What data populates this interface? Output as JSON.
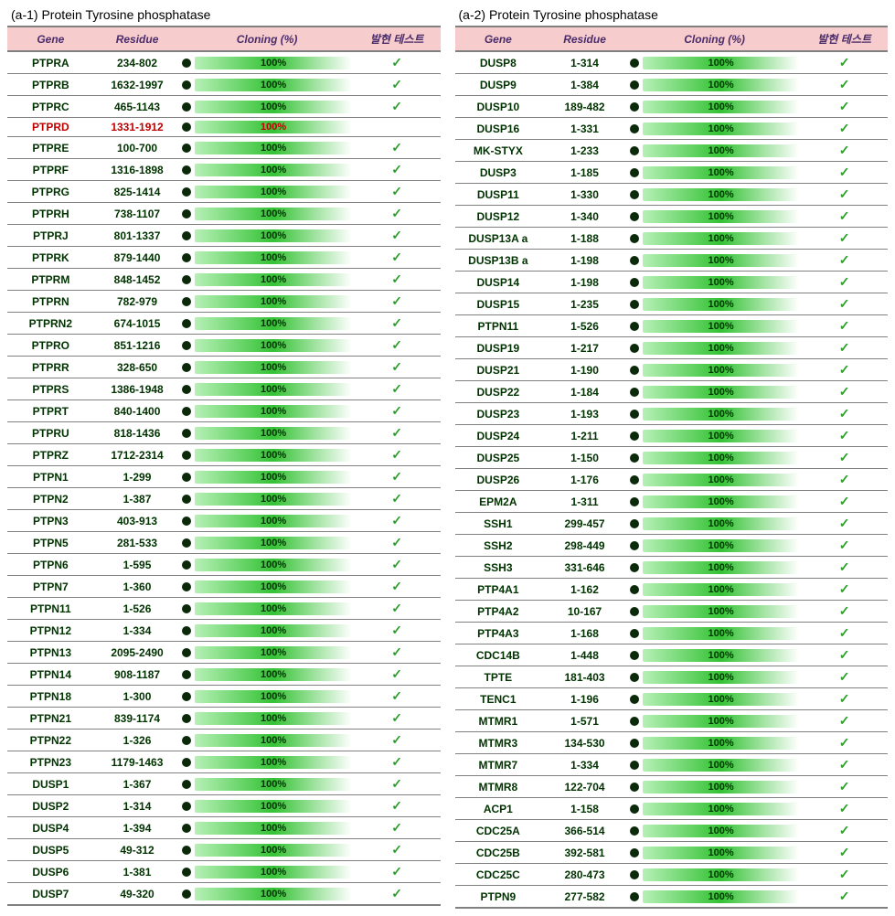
{
  "title_left": "(a-1) Protein Tyrosine phosphatase",
  "title_right": "(a-2) Protein Tyrosine phosphatase",
  "headers": {
    "gene": "Gene",
    "residue": "Residue",
    "cloning": "Cloning (%)",
    "test": "발현 테스트"
  },
  "colors": {
    "header_bg": "#f7cccc",
    "header_text": "#4a2c6b",
    "row_text": "#003300",
    "highlight_text": "#c00000",
    "border": "#808080",
    "dot": "#0a2a0a",
    "bar_gradient_from": "#b6f0b6",
    "bar_gradient_mid": "#34c234",
    "bar_gradient_to": "#ffffff",
    "check": "#2aa02a",
    "background": "#ffffff"
  },
  "font": {
    "family": "Arial",
    "title_size": 14,
    "header_size": 12,
    "cell_size": 12,
    "bar_label_size": 11
  },
  "check_glyph": "✓",
  "left_rows": [
    {
      "gene": "PTPRA",
      "residue": "234-802",
      "cloning": "100%",
      "check": true,
      "highlight": false
    },
    {
      "gene": "PTPRB",
      "residue": "1632-1997",
      "cloning": "100%",
      "check": true,
      "highlight": false
    },
    {
      "gene": "PTPRC",
      "residue": "465-1143",
      "cloning": "100%",
      "check": true,
      "highlight": false
    },
    {
      "gene": "PTPRD",
      "residue": "1331-1912",
      "cloning": "100%",
      "check": false,
      "highlight": true
    },
    {
      "gene": "PTPRE",
      "residue": "100-700",
      "cloning": "100%",
      "check": true,
      "highlight": false
    },
    {
      "gene": "PTPRF",
      "residue": "1316-1898",
      "cloning": "100%",
      "check": true,
      "highlight": false
    },
    {
      "gene": "PTPRG",
      "residue": "825-1414",
      "cloning": "100%",
      "check": true,
      "highlight": false
    },
    {
      "gene": "PTPRH",
      "residue": "738-1107",
      "cloning": "100%",
      "check": true,
      "highlight": false
    },
    {
      "gene": "PTPRJ",
      "residue": "801-1337",
      "cloning": "100%",
      "check": true,
      "highlight": false
    },
    {
      "gene": "PTPRK",
      "residue": "879-1440",
      "cloning": "100%",
      "check": true,
      "highlight": false
    },
    {
      "gene": "PTPRM",
      "residue": "848-1452",
      "cloning": "100%",
      "check": true,
      "highlight": false
    },
    {
      "gene": "PTPRN",
      "residue": "782-979",
      "cloning": "100%",
      "check": true,
      "highlight": false
    },
    {
      "gene": "PTPRN2",
      "residue": "674-1015",
      "cloning": "100%",
      "check": true,
      "highlight": false
    },
    {
      "gene": "PTPRO",
      "residue": "851-1216",
      "cloning": "100%",
      "check": true,
      "highlight": false
    },
    {
      "gene": "PTPRR",
      "residue": "328-650",
      "cloning": "100%",
      "check": true,
      "highlight": false
    },
    {
      "gene": "PTPRS",
      "residue": "1386-1948",
      "cloning": "100%",
      "check": true,
      "highlight": false
    },
    {
      "gene": "PTPRT",
      "residue": "840-1400",
      "cloning": "100%",
      "check": true,
      "highlight": false
    },
    {
      "gene": "PTPRU",
      "residue": "818-1436",
      "cloning": "100%",
      "check": true,
      "highlight": false
    },
    {
      "gene": "PTPRZ",
      "residue": "1712-2314",
      "cloning": "100%",
      "check": true,
      "highlight": false
    },
    {
      "gene": "PTPN1",
      "residue": "1-299",
      "cloning": "100%",
      "check": true,
      "highlight": false
    },
    {
      "gene": "PTPN2",
      "residue": "1-387",
      "cloning": "100%",
      "check": true,
      "highlight": false
    },
    {
      "gene": "PTPN3",
      "residue": "403-913",
      "cloning": "100%",
      "check": true,
      "highlight": false
    },
    {
      "gene": "PTPN5",
      "residue": "281-533",
      "cloning": "100%",
      "check": true,
      "highlight": false
    },
    {
      "gene": "PTPN6",
      "residue": "1-595",
      "cloning": "100%",
      "check": true,
      "highlight": false
    },
    {
      "gene": "PTPN7",
      "residue": "1-360",
      "cloning": "100%",
      "check": true,
      "highlight": false
    },
    {
      "gene": "PTPN11",
      "residue": "1-526",
      "cloning": "100%",
      "check": true,
      "highlight": false
    },
    {
      "gene": "PTPN12",
      "residue": "1-334",
      "cloning": "100%",
      "check": true,
      "highlight": false
    },
    {
      "gene": "PTPN13",
      "residue": "2095-2490",
      "cloning": "100%",
      "check": true,
      "highlight": false
    },
    {
      "gene": "PTPN14",
      "residue": "908-1187",
      "cloning": "100%",
      "check": true,
      "highlight": false
    },
    {
      "gene": "PTPN18",
      "residue": "1-300",
      "cloning": "100%",
      "check": true,
      "highlight": false
    },
    {
      "gene": "PTPN21",
      "residue": "839-1174",
      "cloning": "100%",
      "check": true,
      "highlight": false
    },
    {
      "gene": "PTPN22",
      "residue": "1-326",
      "cloning": "100%",
      "check": true,
      "highlight": false
    },
    {
      "gene": "PTPN23",
      "residue": "1179-1463",
      "cloning": "100%",
      "check": true,
      "highlight": false
    },
    {
      "gene": "DUSP1",
      "residue": "1-367",
      "cloning": "100%",
      "check": true,
      "highlight": false
    },
    {
      "gene": "DUSP2",
      "residue": "1-314",
      "cloning": "100%",
      "check": true,
      "highlight": false
    },
    {
      "gene": "DUSP4",
      "residue": "1-394",
      "cloning": "100%",
      "check": true,
      "highlight": false
    },
    {
      "gene": "DUSP5",
      "residue": "49-312",
      "cloning": "100%",
      "check": true,
      "highlight": false
    },
    {
      "gene": "DUSP6",
      "residue": "1-381",
      "cloning": "100%",
      "check": true,
      "highlight": false
    },
    {
      "gene": "DUSP7",
      "residue": "49-320",
      "cloning": "100%",
      "check": true,
      "highlight": false
    }
  ],
  "right_rows": [
    {
      "gene": "DUSP8",
      "residue": "1-314",
      "cloning": "100%",
      "check": true,
      "highlight": false
    },
    {
      "gene": "DUSP9",
      "residue": "1-384",
      "cloning": "100%",
      "check": true,
      "highlight": false
    },
    {
      "gene": "DUSP10",
      "residue": "189-482",
      "cloning": "100%",
      "check": true,
      "highlight": false
    },
    {
      "gene": "DUSP16",
      "residue": "1-331",
      "cloning": "100%",
      "check": true,
      "highlight": false
    },
    {
      "gene": "MK-STYX",
      "residue": "1-233",
      "cloning": "100%",
      "check": true,
      "highlight": false
    },
    {
      "gene": "DUSP3",
      "residue": "1-185",
      "cloning": "100%",
      "check": true,
      "highlight": false
    },
    {
      "gene": "DUSP11",
      "residue": "1-330",
      "cloning": "100%",
      "check": true,
      "highlight": false
    },
    {
      "gene": "DUSP12",
      "residue": "1-340",
      "cloning": "100%",
      "check": true,
      "highlight": false
    },
    {
      "gene": "DUSP13A a",
      "residue": "1-188",
      "cloning": "100%",
      "check": true,
      "highlight": false
    },
    {
      "gene": "DUSP13B a",
      "residue": "1-198",
      "cloning": "100%",
      "check": true,
      "highlight": false
    },
    {
      "gene": "DUSP14",
      "residue": "1-198",
      "cloning": "100%",
      "check": true,
      "highlight": false
    },
    {
      "gene": "DUSP15",
      "residue": "1-235",
      "cloning": "100%",
      "check": true,
      "highlight": false
    },
    {
      "gene": "PTPN11",
      "residue": "1-526",
      "cloning": "100%",
      "check": true,
      "highlight": false
    },
    {
      "gene": "DUSP19",
      "residue": "1-217",
      "cloning": "100%",
      "check": true,
      "highlight": false
    },
    {
      "gene": "DUSP21",
      "residue": "1-190",
      "cloning": "100%",
      "check": true,
      "highlight": false
    },
    {
      "gene": "DUSP22",
      "residue": "1-184",
      "cloning": "100%",
      "check": true,
      "highlight": false
    },
    {
      "gene": "DUSP23",
      "residue": "1-193",
      "cloning": "100%",
      "check": true,
      "highlight": false
    },
    {
      "gene": "DUSP24",
      "residue": "1-211",
      "cloning": "100%",
      "check": true,
      "highlight": false
    },
    {
      "gene": "DUSP25",
      "residue": "1-150",
      "cloning": "100%",
      "check": true,
      "highlight": false
    },
    {
      "gene": "DUSP26",
      "residue": "1-176",
      "cloning": "100%",
      "check": true,
      "highlight": false
    },
    {
      "gene": "EPM2A",
      "residue": "1-311",
      "cloning": "100%",
      "check": true,
      "highlight": false
    },
    {
      "gene": "SSH1",
      "residue": "299-457",
      "cloning": "100%",
      "check": true,
      "highlight": false
    },
    {
      "gene": "SSH2",
      "residue": "298-449",
      "cloning": "100%",
      "check": true,
      "highlight": false
    },
    {
      "gene": "SSH3",
      "residue": "331-646",
      "cloning": "100%",
      "check": true,
      "highlight": false
    },
    {
      "gene": "PTP4A1",
      "residue": "1-162",
      "cloning": "100%",
      "check": true,
      "highlight": false
    },
    {
      "gene": "PTP4A2",
      "residue": "10-167",
      "cloning": "100%",
      "check": true,
      "highlight": false
    },
    {
      "gene": "PTP4A3",
      "residue": "1-168",
      "cloning": "100%",
      "check": true,
      "highlight": false
    },
    {
      "gene": "CDC14B",
      "residue": "1-448",
      "cloning": "100%",
      "check": true,
      "highlight": false
    },
    {
      "gene": "TPTE",
      "residue": "181-403",
      "cloning": "100%",
      "check": true,
      "highlight": false
    },
    {
      "gene": "TENC1",
      "residue": "1-196",
      "cloning": "100%",
      "check": true,
      "highlight": false
    },
    {
      "gene": "MTMR1",
      "residue": "1-571",
      "cloning": "100%",
      "check": true,
      "highlight": false
    },
    {
      "gene": "MTMR3",
      "residue": "134-530",
      "cloning": "100%",
      "check": true,
      "highlight": false
    },
    {
      "gene": "MTMR7",
      "residue": "1-334",
      "cloning": "100%",
      "check": true,
      "highlight": false
    },
    {
      "gene": "MTMR8",
      "residue": "122-704",
      "cloning": "100%",
      "check": true,
      "highlight": false
    },
    {
      "gene": "ACP1",
      "residue": "1-158",
      "cloning": "100%",
      "check": true,
      "highlight": false
    },
    {
      "gene": "CDC25A",
      "residue": "366-514",
      "cloning": "100%",
      "check": true,
      "highlight": false
    },
    {
      "gene": "CDC25B",
      "residue": "392-581",
      "cloning": "100%",
      "check": true,
      "highlight": false
    },
    {
      "gene": "CDC25C",
      "residue": "280-473",
      "cloning": "100%",
      "check": true,
      "highlight": false
    },
    {
      "gene": "PTPN9",
      "residue": "277-582",
      "cloning": "100%",
      "check": true,
      "highlight": false
    }
  ]
}
